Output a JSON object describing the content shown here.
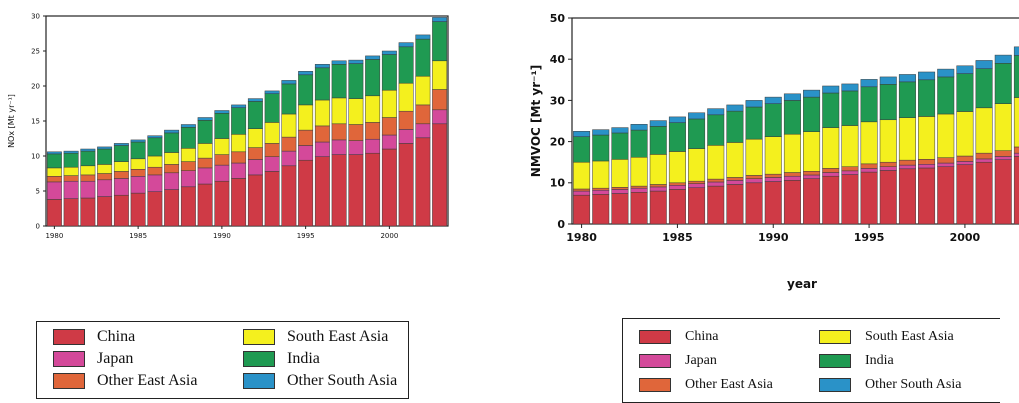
{
  "colors": {
    "China": "#cf3a46",
    "Japan": "#d4499a",
    "Other East Asia": "#e0663a",
    "South East Asia": "#f4f01e",
    "India": "#1f9a52",
    "Other South Asia": "#2a92c8"
  },
  "legend": {
    "items": [
      "China",
      "South East Asia",
      "Japan",
      "India",
      "Other East Asia",
      "Other South Asia"
    ]
  },
  "chart_data": [
    {
      "type": "bar",
      "stacked": true,
      "title": "",
      "xlabel": "",
      "ylabel": "NOx [Mt yr⁻¹]",
      "ylim": [
        0,
        30
      ],
      "yticks": [
        0,
        5,
        10,
        15,
        20,
        25,
        30
      ],
      "xtick_labels": [
        "1980",
        "1985",
        "1990",
        "1995",
        "2000"
      ],
      "categories": [
        1980,
        1981,
        1982,
        1983,
        1984,
        1985,
        1986,
        1987,
        1988,
        1989,
        1990,
        1991,
        1992,
        1993,
        1994,
        1995,
        1996,
        1997,
        1998,
        1999,
        2000,
        2001,
        2002,
        2003
      ],
      "series": [
        {
          "name": "China",
          "values": [
            3.8,
            3.9,
            4.0,
            4.2,
            4.4,
            4.7,
            4.9,
            5.2,
            5.6,
            6.0,
            6.4,
            6.8,
            7.3,
            7.8,
            8.6,
            9.4,
            9.9,
            10.2,
            10.2,
            10.4,
            11.0,
            11.8,
            12.6,
            14.6
          ]
        },
        {
          "name": "Japan",
          "values": [
            2.5,
            2.5,
            2.4,
            2.4,
            2.4,
            2.4,
            2.4,
            2.4,
            2.3,
            2.3,
            2.3,
            2.2,
            2.2,
            2.1,
            2.1,
            2.1,
            2.1,
            2.1,
            2.0,
            2.0,
            2.0,
            2.0,
            2.0,
            2.0
          ]
        },
        {
          "name": "Other East Asia",
          "values": [
            0.8,
            0.8,
            0.9,
            0.9,
            1.0,
            1.0,
            1.1,
            1.2,
            1.3,
            1.4,
            1.5,
            1.6,
            1.7,
            1.9,
            2.0,
            2.2,
            2.3,
            2.3,
            2.3,
            2.4,
            2.5,
            2.6,
            2.7,
            2.9
          ]
        },
        {
          "name": "South East Asia",
          "values": [
            1.2,
            1.2,
            1.3,
            1.3,
            1.4,
            1.5,
            1.6,
            1.7,
            1.9,
            2.1,
            2.3,
            2.5,
            2.7,
            3.0,
            3.3,
            3.6,
            3.7,
            3.7,
            3.7,
            3.8,
            3.9,
            4.0,
            4.1,
            4.1
          ]
        },
        {
          "name": "India",
          "values": [
            2.0,
            2.0,
            2.1,
            2.2,
            2.3,
            2.4,
            2.6,
            2.8,
            3.0,
            3.3,
            3.6,
            3.8,
            3.9,
            4.1,
            4.3,
            4.3,
            4.6,
            4.8,
            5.0,
            5.2,
            5.1,
            5.2,
            5.3,
            5.6
          ]
        },
        {
          "name": "Other South Asia",
          "values": [
            0.3,
            0.3,
            0.3,
            0.3,
            0.3,
            0.3,
            0.3,
            0.4,
            0.4,
            0.4,
            0.4,
            0.4,
            0.4,
            0.4,
            0.5,
            0.5,
            0.5,
            0.5,
            0.5,
            0.5,
            0.5,
            0.6,
            0.6,
            0.6
          ]
        }
      ]
    },
    {
      "type": "bar",
      "stacked": true,
      "title": "",
      "xlabel": "year",
      "ylabel": "NMVOC [Mt yr⁻¹]",
      "ylim": [
        0,
        50
      ],
      "yticks": [
        0,
        10,
        20,
        30,
        40,
        50
      ],
      "xtick_labels": [
        "1980",
        "1985",
        "1990",
        "1995",
        "2000"
      ],
      "categories": [
        1980,
        1981,
        1982,
        1983,
        1984,
        1985,
        1986,
        1987,
        1988,
        1989,
        1990,
        1991,
        1992,
        1993,
        1994,
        1995,
        1996,
        1997,
        1998,
        1999,
        2000,
        2001,
        2002,
        2003
      ],
      "series": [
        {
          "name": "China",
          "values": [
            7.0,
            7.2,
            7.4,
            7.7,
            8.0,
            8.4,
            8.8,
            9.2,
            9.6,
            10.0,
            10.3,
            10.6,
            11.0,
            11.6,
            12.0,
            12.6,
            13.0,
            13.4,
            13.6,
            13.9,
            14.4,
            15.0,
            15.6,
            16.4
          ]
        },
        {
          "name": "Japan",
          "values": [
            1.0,
            1.0,
            1.0,
            1.0,
            1.0,
            1.0,
            1.0,
            1.0,
            1.0,
            1.0,
            1.0,
            1.0,
            0.9,
            0.9,
            0.9,
            0.9,
            0.9,
            0.9,
            0.9,
            0.9,
            0.8,
            0.8,
            0.8,
            0.8
          ]
        },
        {
          "name": "Other East Asia",
          "values": [
            0.5,
            0.5,
            0.5,
            0.5,
            0.6,
            0.6,
            0.6,
            0.7,
            0.7,
            0.8,
            0.8,
            0.9,
            0.9,
            1.0,
            1.0,
            1.1,
            1.1,
            1.2,
            1.2,
            1.3,
            1.3,
            1.4,
            1.4,
            1.5
          ]
        },
        {
          "name": "South East Asia",
          "values": [
            6.5,
            6.6,
            6.8,
            7.0,
            7.3,
            7.6,
            7.9,
            8.2,
            8.5,
            8.8,
            9.1,
            9.3,
            9.6,
            9.9,
            10.0,
            10.2,
            10.3,
            10.3,
            10.4,
            10.6,
            10.8,
            11.0,
            11.4,
            12.0
          ]
        },
        {
          "name": "India",
          "values": [
            6.2,
            6.3,
            6.4,
            6.6,
            6.8,
            7.0,
            7.2,
            7.4,
            7.6,
            7.8,
            8.0,
            8.2,
            8.4,
            8.4,
            8.4,
            8.5,
            8.6,
            8.7,
            8.9,
            9.0,
            9.2,
            9.5,
            9.8,
            10.2
          ]
        },
        {
          "name": "Other South Asia",
          "values": [
            1.3,
            1.3,
            1.3,
            1.4,
            1.4,
            1.4,
            1.5,
            1.5,
            1.5,
            1.6,
            1.6,
            1.6,
            1.7,
            1.7,
            1.7,
            1.8,
            1.8,
            1.8,
            1.9,
            1.9,
            1.9,
            2.0,
            2.0,
            2.1
          ]
        }
      ]
    }
  ]
}
